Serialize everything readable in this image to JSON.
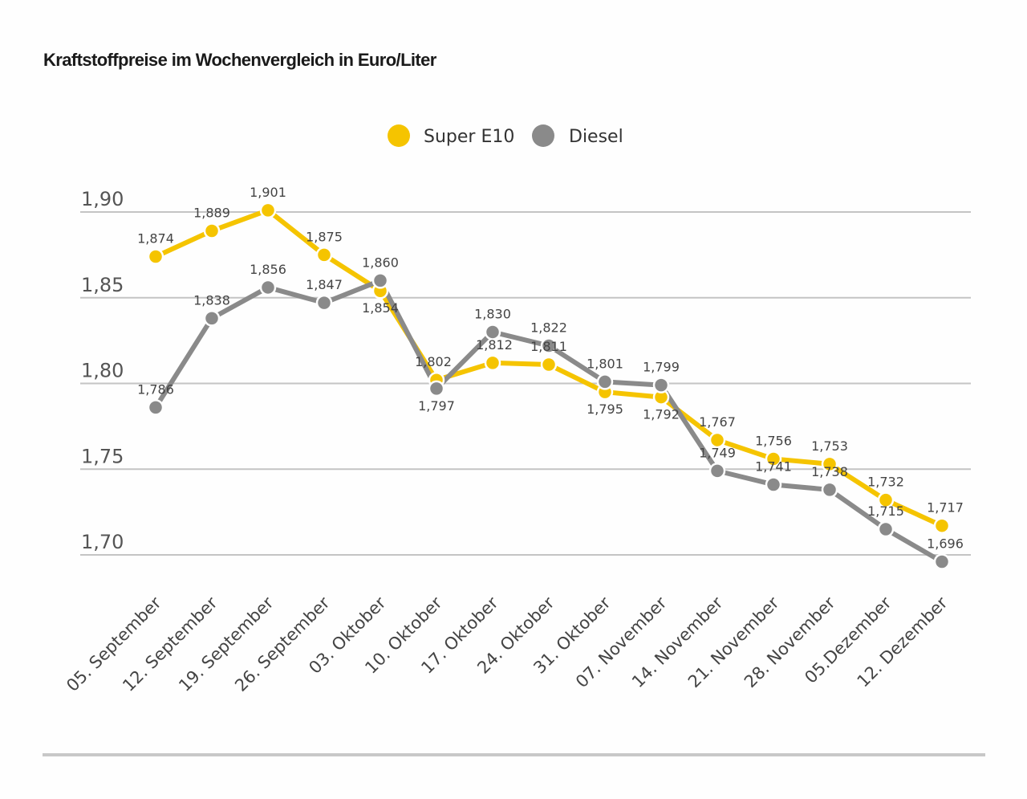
{
  "chart_data": {
    "type": "line",
    "title": "Kraftstoffpreise im Wochenvergleich in Euro/Liter",
    "xlabel": "",
    "ylabel": "",
    "ylim": [
      1.7,
      1.9
    ],
    "yticks": [
      1.9,
      1.85,
      1.8,
      1.75,
      1.7
    ],
    "ytick_labels": [
      "1,90",
      "1,85",
      "1,80",
      "1,75",
      "1,70"
    ],
    "grid": true,
    "legend_position": "top-center",
    "categories": [
      "05. September",
      "12. September",
      "19. September",
      "26. September",
      "03. Oktober",
      "10. Oktober",
      "17. Oktober",
      "24. Oktober",
      "31. Oktober",
      "07. November",
      "14. November",
      "21. November",
      "28. November",
      "05.Dezember",
      "12. Dezember"
    ],
    "series": [
      {
        "name": "Super E10",
        "color": "#f5c400",
        "values": [
          1.874,
          1.889,
          1.901,
          1.875,
          1.854,
          1.802,
          1.812,
          1.811,
          1.795,
          1.792,
          1.767,
          1.756,
          1.753,
          1.732,
          1.717
        ],
        "labels": [
          "1,874",
          "1,889",
          "1,901",
          "1,875",
          "1,854",
          "1,802",
          "1,812",
          "1,811",
          "1,795",
          "1,792",
          "1,767",
          "1,756",
          "1,753",
          "1,732",
          "1,717"
        ]
      },
      {
        "name": "Diesel",
        "color": "#8a8a8a",
        "values": [
          1.786,
          1.838,
          1.856,
          1.847,
          1.86,
          1.797,
          1.83,
          1.822,
          1.801,
          1.799,
          1.749,
          1.741,
          1.738,
          1.715,
          1.696
        ],
        "labels": [
          "1,786",
          "1,838",
          "1,856",
          "1,847",
          "1,860",
          "1,797",
          "1,830",
          "1,822",
          "1,801",
          "1,799",
          "1,749",
          "1,741",
          "1,738",
          "1,715",
          "1,696"
        ]
      }
    ]
  }
}
